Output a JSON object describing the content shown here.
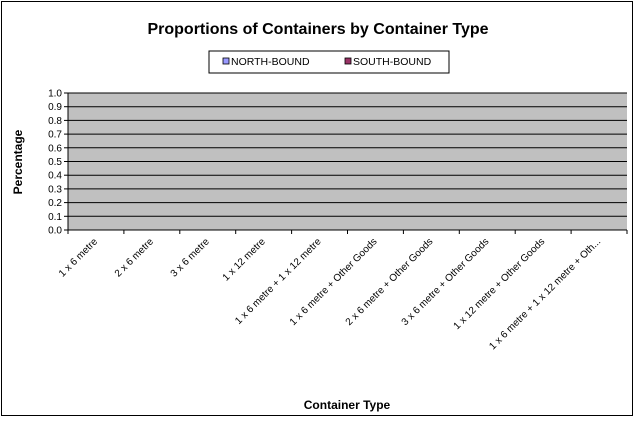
{
  "chart_data": {
    "type": "bar",
    "title": "Proportions of Containers by Container Type",
    "xlabel": "Container Type",
    "ylabel": "Percentage",
    "ylim": [
      0,
      1
    ],
    "yticks": [
      "0.0",
      "0.1",
      "0.2",
      "0.3",
      "0.4",
      "0.5",
      "0.6",
      "0.7",
      "0.8",
      "0.9",
      "1.0"
    ],
    "grid": true,
    "legend_position": "top",
    "categories": [
      "1 x 6 metre",
      "2 x 6 metre",
      "3 x 6 metre",
      "1 x 12 metre",
      "1 x 6 metre + 1 x 12 metre",
      "1 x 6 metre + Other Goods",
      "2 x 6 metre + Other Goods",
      "3 x 6 metre + Other Goods",
      "1 x 12 metre + Other Goods",
      "1 x 6 metre + 1 x 12 metre + Oth..."
    ],
    "series": [
      {
        "name": "NORTH-BOUND",
        "color": "#9999ff",
        "values": [
          0,
          0,
          0,
          0,
          0,
          0,
          0,
          0,
          0,
          0
        ]
      },
      {
        "name": "SOUTH-BOUND",
        "color": "#993366",
        "values": [
          0,
          0,
          0,
          0,
          0,
          0,
          0,
          0,
          0,
          0
        ]
      }
    ],
    "plot_background": "#c0c0c0"
  }
}
